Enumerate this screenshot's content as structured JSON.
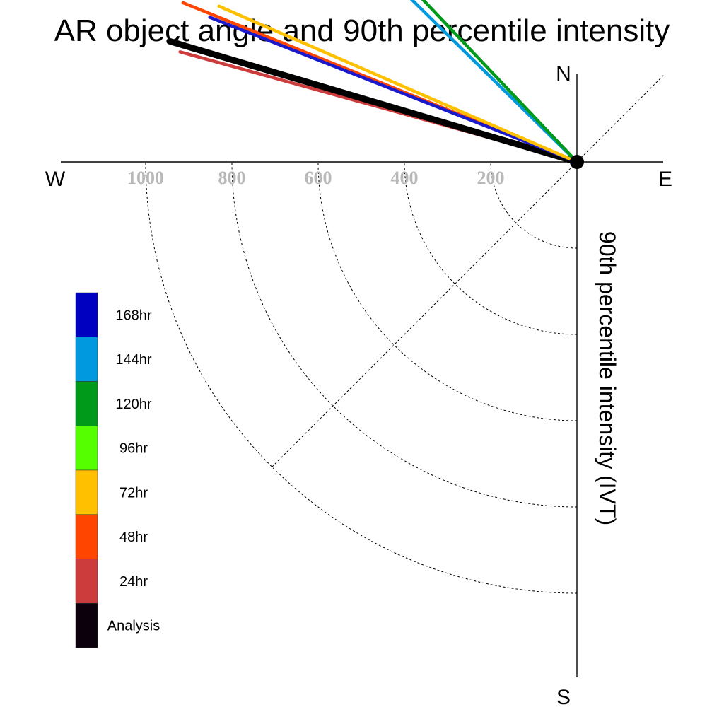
{
  "chart_data": {
    "type": "polar-line",
    "title": "AR object angle and 90th percentile intensity",
    "radial_label": "90th percentile intensity (IVT)",
    "directions": {
      "north": "N",
      "south": "S",
      "east": "E",
      "west": "W"
    },
    "radial_ticks": [
      {
        "value": 200,
        "label": "200"
      },
      {
        "value": 400,
        "label": "400"
      },
      {
        "value": 600,
        "label": "600"
      },
      {
        "value": 800,
        "label": "800"
      },
      {
        "value": 1000,
        "label": "1000"
      }
    ],
    "radial_max": 1000,
    "series": [
      {
        "name": "24hr",
        "color": "#cc3c3c",
        "angle_deg": 195.5,
        "intensity": 955
      },
      {
        "name": "Analysis",
        "color": "#000000",
        "angle_deg": 196.5,
        "intensity": 985
      },
      {
        "name": "48hr",
        "color": "#ff4500",
        "angle_deg": 202.0,
        "intensity": 985
      },
      {
        "name": "168hr",
        "color": "#1a1acc",
        "angle_deg": 201.5,
        "intensity": 915
      },
      {
        "name": "72hr",
        "color": "#ffc000",
        "angle_deg": 203.5,
        "intensity": 905
      },
      {
        "name": "144hr",
        "color": "#0099dd",
        "angle_deg": 224.5,
        "intensity": 990
      },
      {
        "name": "120hr",
        "color": "#009a1a",
        "angle_deg": 226.5,
        "intensity": 900
      }
    ],
    "legend": [
      {
        "label": "168hr",
        "color": "#0000c0"
      },
      {
        "label": "144hr",
        "color": "#0099e0"
      },
      {
        "label": "120hr",
        "color": "#009a1a"
      },
      {
        "label": "96hr",
        "color": "#55ff00"
      },
      {
        "label": "72hr",
        "color": "#ffc000"
      },
      {
        "label": "48hr",
        "color": "#ff4500"
      },
      {
        "label": "24hr",
        "color": "#cc3c3c"
      },
      {
        "label": "Analysis",
        "color": "#0c000c"
      }
    ]
  }
}
